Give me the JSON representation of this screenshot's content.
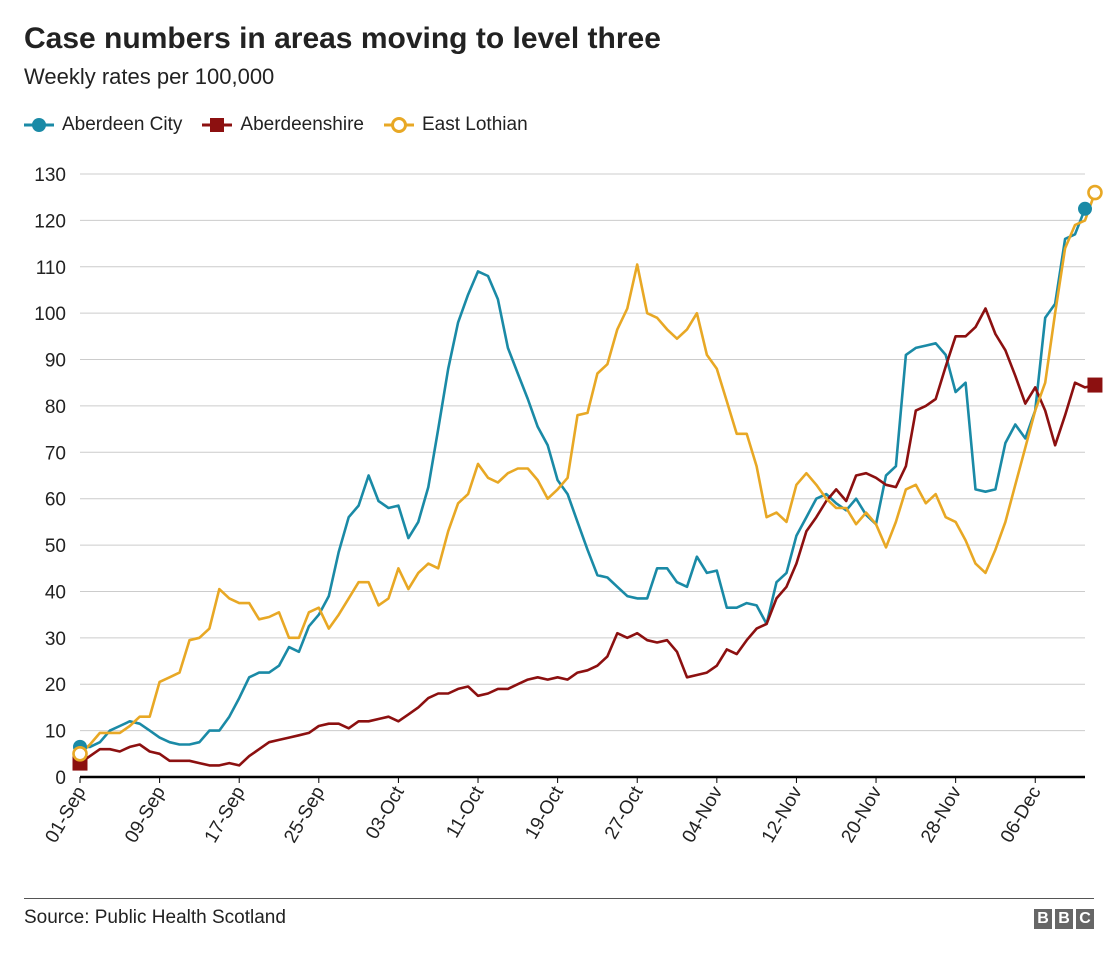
{
  "title": "Case numbers in areas moving to level three",
  "subtitle": "Weekly rates per 100,000",
  "source": "Source: Public Health Scotland",
  "logo": [
    "B",
    "B",
    "C"
  ],
  "colors": {
    "aberdeen_city": "#1a8aa6",
    "aberdeenshire": "#8c1010",
    "east_lothian": "#e8a825",
    "grid": "#cccccc",
    "axis": "#000000"
  },
  "chart_data": {
    "type": "line",
    "x_unit": "days from 01-Sep",
    "ylim": [
      0,
      130
    ],
    "yticks": [
      0,
      10,
      20,
      30,
      40,
      50,
      60,
      70,
      80,
      90,
      100,
      110,
      120,
      130
    ],
    "xticks": [
      "01-Sep",
      "09-Sep",
      "17-Sep",
      "25-Sep",
      "03-Oct",
      "11-Oct",
      "19-Oct",
      "27-Oct",
      "04-Nov",
      "12-Nov",
      "20-Nov",
      "28-Nov",
      "06-Dec"
    ],
    "grid": true,
    "legend_position": "top-left",
    "series": [
      {
        "name": "Aberdeen City",
        "color": "#1a8aa6",
        "marker": "circle",
        "values": [
          6.5,
          6.5,
          7.5,
          10,
          11,
          12,
          11.5,
          10,
          8.5,
          7.5,
          7,
          7,
          7.5,
          10,
          10,
          13,
          17,
          21.5,
          22.5,
          22.5,
          24,
          28,
          27,
          32.5,
          35,
          39,
          48.5,
          56,
          58.5,
          65,
          59.5,
          58,
          58.5,
          51.5,
          55,
          62.5,
          75,
          88,
          98,
          104,
          109,
          108,
          103,
          92.5,
          87,
          81.5,
          75.5,
          71.5,
          64,
          61,
          55,
          49,
          43.5,
          43,
          41,
          39,
          38.5,
          38.5,
          45,
          45,
          42,
          41,
          47.5,
          44,
          44.5,
          36.5,
          36.5,
          37.5,
          37,
          33,
          42,
          44,
          52,
          56,
          60,
          61,
          59,
          57.5,
          60,
          56.5,
          54.5,
          65,
          67,
          91,
          92.5,
          93,
          93.5,
          91,
          83,
          85,
          62,
          61.5,
          62,
          72,
          76,
          73,
          79,
          99,
          102,
          116,
          117,
          122.5
        ]
      },
      {
        "name": "Aberdeenshire",
        "color": "#8c1010",
        "marker": "square",
        "values": [
          3,
          4.5,
          6,
          6,
          5.5,
          6.5,
          7,
          5.5,
          5,
          3.5,
          3.5,
          3.5,
          3,
          2.5,
          2.5,
          3,
          2.5,
          4.5,
          6,
          7.5,
          8,
          8.5,
          9,
          9.5,
          11,
          11.5,
          11.5,
          10.5,
          12,
          12,
          12.5,
          13,
          12,
          13.5,
          15,
          17,
          18,
          18,
          19,
          19.5,
          17.5,
          18,
          19,
          19,
          20,
          21,
          21.5,
          21,
          21.5,
          21,
          22.5,
          23,
          24,
          26,
          31,
          30,
          31,
          29.5,
          29,
          29.5,
          27,
          21.5,
          22,
          22.5,
          24,
          27.5,
          26.5,
          29.5,
          32,
          33,
          38.5,
          41,
          46,
          53,
          56,
          59.5,
          62,
          59.5,
          65,
          65.5,
          64.5,
          63,
          62.5,
          67,
          79,
          80,
          81.5,
          88.5,
          95,
          95,
          97,
          101,
          95.5,
          92,
          86.5,
          80.5,
          84,
          79,
          71.5,
          78,
          85,
          84,
          84.5
        ]
      },
      {
        "name": "East Lothian",
        "color": "#e8a825",
        "marker": "open-circle",
        "values": [
          5,
          7,
          9.5,
          9.5,
          9.5,
          11,
          13,
          13,
          20.5,
          21.5,
          22.5,
          29.5,
          30,
          32,
          40.5,
          38.5,
          37.5,
          37.5,
          34,
          34.5,
          35.5,
          30,
          30,
          35.5,
          36.5,
          32,
          35,
          38.5,
          42,
          42,
          37,
          38.5,
          45,
          40.5,
          44,
          46,
          45,
          53,
          59,
          61,
          67.5,
          64.5,
          63.5,
          65.5,
          66.5,
          66.5,
          64,
          60,
          62,
          64.5,
          78,
          78.5,
          87,
          89,
          96.5,
          101,
          110.5,
          100,
          99,
          96.5,
          94.5,
          96.5,
          100,
          91,
          88,
          81,
          74,
          74,
          67,
          56,
          57,
          55,
          63,
          65.5,
          63,
          60,
          58,
          58,
          54.5,
          57,
          54.5,
          49.5,
          55,
          62,
          63,
          59,
          61,
          56,
          55,
          51,
          46,
          44,
          49,
          55,
          63,
          71,
          79,
          85,
          100,
          114,
          119,
          120,
          126
        ]
      }
    ]
  }
}
